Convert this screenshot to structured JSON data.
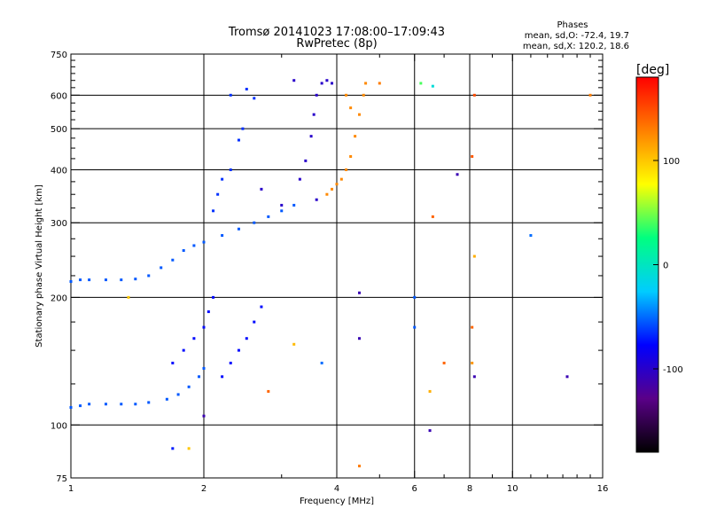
{
  "chart_data": {
    "type": "scatter",
    "title": "Tromsø 20141023 17:08:00–17:09:43",
    "subtitle": "RwPretec (8p)",
    "xlabel": "Frequency [MHz]",
    "ylabel": "Stationary phase Virtual Height [km]",
    "x_scale": "log",
    "y_scale": "log",
    "xlim": [
      1,
      16
    ],
    "ylim": [
      75,
      750
    ],
    "x_ticks": [
      1,
      2,
      4,
      6,
      8,
      10,
      16
    ],
    "y_ticks": [
      75,
      100,
      200,
      300,
      400,
      500,
      600,
      750
    ],
    "x_gridlines": [
      2,
      4,
      6,
      8,
      10
    ],
    "y_gridlines": [
      100,
      200,
      300,
      400,
      500,
      600
    ],
    "grid": true,
    "stats_header": "Phases",
    "stats": [
      "mean, sd,O: -72.4, 19.7",
      "mean, sd,X: 120.2, 18.6"
    ],
    "colorbar": {
      "label": "[deg]",
      "range": [
        -180,
        180
      ],
      "ticks": [
        100,
        0,
        -100
      ],
      "colormap": [
        "#000000",
        "#5a0088",
        "#0000ff",
        "#00ccff",
        "#00ff80",
        "#ffff00",
        "#ff8000",
        "#ff0000"
      ]
    },
    "series": [
      {
        "points": [
          [
            1.0,
            110,
            -55
          ],
          [
            1.05,
            111,
            -55
          ],
          [
            1.1,
            112,
            -55
          ],
          [
            1.2,
            112,
            -55
          ],
          [
            1.3,
            112,
            -55
          ],
          [
            1.4,
            112,
            -55
          ],
          [
            1.5,
            113,
            -55
          ],
          [
            1.65,
            115,
            -55
          ],
          [
            1.75,
            118,
            -55
          ],
          [
            1.85,
            123,
            -55
          ],
          [
            1.95,
            130,
            -55
          ],
          [
            2.0,
            136,
            -55
          ],
          [
            1.0,
            218,
            -55
          ],
          [
            1.05,
            220,
            -55
          ],
          [
            1.1,
            220,
            -55
          ],
          [
            1.2,
            220,
            -55
          ],
          [
            1.3,
            220,
            -55
          ],
          [
            1.4,
            221,
            -55
          ],
          [
            1.5,
            225,
            -55
          ],
          [
            1.6,
            235,
            -55
          ],
          [
            1.7,
            245,
            -55
          ],
          [
            1.8,
            258,
            -55
          ],
          [
            1.9,
            265,
            -55
          ],
          [
            2.0,
            270,
            -55
          ],
          [
            2.2,
            280,
            -55
          ],
          [
            2.4,
            290,
            -55
          ],
          [
            2.6,
            300,
            -55
          ],
          [
            2.8,
            310,
            -55
          ],
          [
            3.0,
            320,
            -55
          ],
          [
            3.2,
            330,
            -55
          ],
          [
            1.7,
            140,
            -75
          ],
          [
            1.8,
            150,
            -75
          ],
          [
            1.9,
            160,
            -75
          ],
          [
            2.0,
            170,
            -75
          ],
          [
            2.05,
            185,
            -75
          ],
          [
            2.1,
            200,
            -75
          ],
          [
            2.2,
            130,
            -75
          ],
          [
            2.3,
            140,
            -75
          ],
          [
            2.4,
            150,
            -75
          ],
          [
            2.5,
            160,
            -75
          ],
          [
            2.6,
            175,
            -75
          ],
          [
            2.7,
            190,
            -75
          ],
          [
            2.1,
            320,
            -65
          ],
          [
            2.15,
            350,
            -65
          ],
          [
            2.2,
            380,
            -65
          ],
          [
            2.3,
            400,
            -65
          ],
          [
            2.4,
            470,
            -65
          ],
          [
            2.45,
            500,
            -65
          ],
          [
            2.3,
            600,
            -65
          ],
          [
            2.5,
            620,
            -65
          ],
          [
            2.6,
            590,
            -65
          ],
          [
            3.3,
            380,
            -100
          ],
          [
            3.4,
            420,
            -100
          ],
          [
            3.5,
            480,
            -100
          ],
          [
            3.55,
            540,
            -100
          ],
          [
            3.6,
            600,
            -100
          ],
          [
            3.7,
            640,
            -100
          ],
          [
            3.8,
            650,
            -100
          ],
          [
            3.9,
            640,
            -100
          ],
          [
            3.6,
            340,
            -100
          ],
          [
            3.0,
            330,
            -100
          ],
          [
            2.7,
            360,
            -100
          ],
          [
            3.2,
            650,
            -100
          ],
          [
            3.8,
            350,
            125
          ],
          [
            3.9,
            360,
            125
          ],
          [
            4.0,
            370,
            125
          ],
          [
            4.1,
            380,
            125
          ],
          [
            4.2,
            400,
            125
          ],
          [
            4.3,
            430,
            125
          ],
          [
            4.4,
            480,
            125
          ],
          [
            4.5,
            540,
            125
          ],
          [
            4.6,
            600,
            125
          ],
          [
            4.65,
            640,
            125
          ],
          [
            4.2,
            600,
            125
          ],
          [
            4.3,
            560,
            125
          ],
          [
            2.8,
            120,
            140
          ],
          [
            3.2,
            155,
            105
          ],
          [
            4.5,
            80,
            130
          ],
          [
            5.0,
            640,
            130
          ],
          [
            6.5,
            120,
            110
          ],
          [
            7.0,
            140,
            140
          ],
          [
            6.6,
            310,
            140
          ],
          [
            8.1,
            430,
            145
          ],
          [
            8.1,
            170,
            140
          ],
          [
            8.1,
            140,
            120
          ],
          [
            8.2,
            600,
            150
          ],
          [
            8.2,
            250,
            110
          ],
          [
            1.85,
            88,
            100
          ],
          [
            1.7,
            88,
            -70
          ],
          [
            1.35,
            200,
            100
          ],
          [
            2.0,
            105,
            -110
          ],
          [
            3.7,
            140,
            -50
          ],
          [
            4.5,
            205,
            -110
          ],
          [
            4.5,
            160,
            -110
          ],
          [
            6.0,
            200,
            -55
          ],
          [
            6.0,
            170,
            -55
          ],
          [
            6.5,
            97,
            -110
          ],
          [
            7.5,
            390,
            -110
          ],
          [
            8.2,
            130,
            -110
          ],
          [
            11.0,
            280,
            -50
          ],
          [
            13.3,
            130,
            -110
          ],
          [
            6.2,
            640,
            40
          ],
          [
            6.6,
            630,
            -10
          ],
          [
            15.0,
            600,
            130
          ]
        ]
      }
    ]
  }
}
